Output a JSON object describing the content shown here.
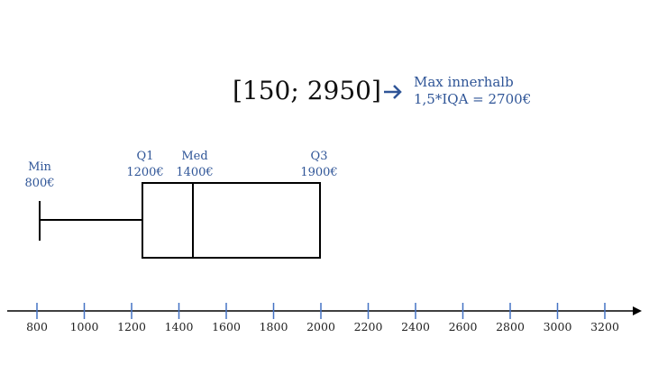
{
  "interval": "[150; 2950]",
  "max_note": {
    "line1": "Max innerhalb",
    "line2": "1,5*IQA = 2700€"
  },
  "labels": {
    "min": {
      "name": "Min",
      "value": "800€"
    },
    "q1": {
      "name": "Q1",
      "value": "1200€"
    },
    "median": {
      "name": "Med",
      "value": "1400€"
    },
    "q3": {
      "name": "Q3",
      "value": "1900€"
    }
  },
  "axis_ticks": [
    "800",
    "1000",
    "1200",
    "1400",
    "1600",
    "1800",
    "2000",
    "2200",
    "2400",
    "2600",
    "2800",
    "3000",
    "3200"
  ],
  "colors": {
    "accent": "#2f5597",
    "tick": "#4472c4",
    "line": "#000000"
  }
}
